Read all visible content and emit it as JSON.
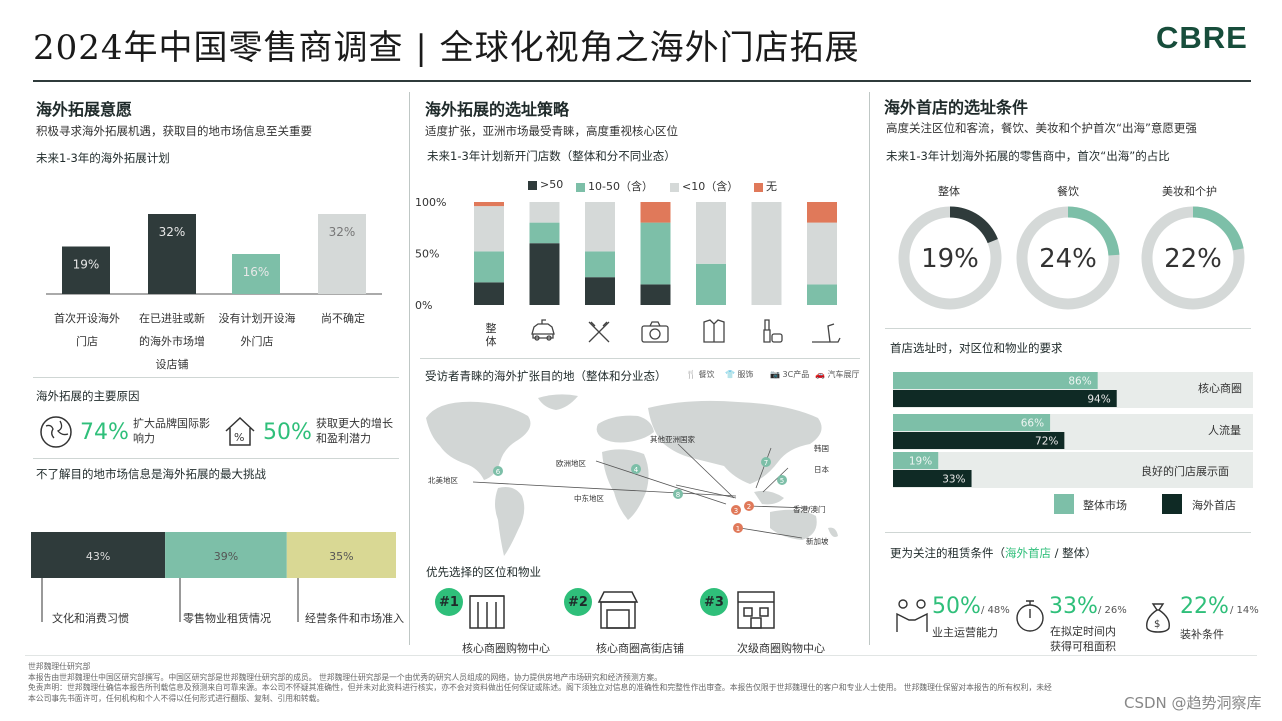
{
  "header": {
    "title": "2024年中国零售商调查 | 全球化视角之海外门店拓展",
    "logo": "CBRE"
  },
  "col1": {
    "heading": "海外拓展意愿",
    "subtitle": "积极寻求海外拓展机遇，获取目的地市场信息至关重要",
    "chart_title": "未来1-3年的海外拓展计划",
    "reasons_title": "海外拓展的主要原因",
    "reason1": {
      "pct": "74%",
      "text": "扩大品牌国际影响力"
    },
    "reason2": {
      "pct": "50%",
      "text": "获取更大的增长和盈利潜力"
    },
    "challenge_title": "不了解目的地市场信息是海外拓展的最大挑战"
  },
  "col2": {
    "heading": "海外拓展的选址策略",
    "subtitle": "适度扩张，亚洲市场最受青睐，高度重视核心区位",
    "chart_title": "未来1-3年计划新开门店数（整体和分不同业态）",
    "map_title": "受访者青睐的海外扩张目的地（整体和分业态）",
    "map_legend": [
      "餐饮",
      "服饰",
      "3C产品",
      "汽车展厅"
    ],
    "regions": [
      {
        "name": "北美地区",
        "rank": "6"
      },
      {
        "name": "欧洲地区",
        "rank": "4"
      },
      {
        "name": "其他亚洲国家",
        "rank": ""
      },
      {
        "name": "中东地区",
        "rank": "8"
      },
      {
        "name": "韩国",
        "rank": "7"
      },
      {
        "name": "日本",
        "rank": "5"
      },
      {
        "name": "香港/澳门",
        "rank": "3"
      },
      {
        "name": "新加坡",
        "rank": "1"
      }
    ],
    "extra_ranks": [
      "2"
    ],
    "priority_title": "优先选择的区位和物业",
    "priority": [
      {
        "rank": "#1",
        "label": "核心商圈购物中心"
      },
      {
        "rank": "#2",
        "label": "核心商圈高街店铺"
      },
      {
        "rank": "#3",
        "label": "次级商圈购物中心"
      }
    ]
  },
  "col3": {
    "heading": "海外首店的选址条件",
    "subtitle": "高度关注区位和客流，餐饮、美妆和个护首次“出海”意愿更强",
    "donut_title": "未来1-3年计划海外拓展的零售商中，首次“出海”的占比",
    "req_title": "首店选址时，对区位和物业的要求",
    "lease_title_pre": "更为关注的租赁条件（",
    "lease_title_highlight": "海外首店",
    "lease_title_post": " / 整体）",
    "lease": [
      {
        "pct": "50%",
        "overall": "/ 48%",
        "label": "业主运营能力"
      },
      {
        "pct": "33%",
        "overall": "/ 26%",
        "label": "在拟定时间内获得可租面积"
      },
      {
        "pct": "22%",
        "overall": "/ 14%",
        "label": "装补条件"
      }
    ]
  },
  "footer": {
    "line1": "世邦魏理仕研究部",
    "line2": "本报告由世邦魏理仕中国区研究部撰写。中国区研究部是世邦魏理仕研究部的成员。 世邦魏理仕研究部是一个由优秀的研究人员组成的网络，协力提供房地产市场研究和经济预测方案。",
    "line3": "免责声明：世邦魏理仕确信本报告所刊载信息及预测来自可靠来源。本公司不怀疑其准确性，但并未对此资料进行核实，亦不会对资料做出任何保证或陈述。阁下须独立对信息的准确性和完整性作出审查。本报告仅限于世邦魏理仕的客户和专业人士使用。 世邦魏理仕保留对本报告的所有权利，未经",
    "line4": "本公司事先书面许可，任何机构和个人不得以任何形式进行翻版、复制、引用和转载。",
    "watermark": "CSDN @趋势洞察库"
  },
  "colors": {
    "dark": "#2f3b3b",
    "teal": "#7dbfa8",
    "gray": "#d5d9d8",
    "orange": "#e0795a",
    "yellow": "#d9d894",
    "green": "#2fbf7a",
    "navy": "#0f2a25"
  },
  "chart_data": [
    {
      "type": "bar",
      "title": "未来1-3年的海外拓展计划",
      "categories": [
        "首次开设海外门店",
        "在已进驻或新的海外市场增设店铺",
        "没有计划开设海外门店",
        "尚不确定"
      ],
      "values": [
        19,
        32,
        16,
        32
      ],
      "labels": [
        "19%",
        "32%",
        "16%",
        "32%"
      ],
      "colors": [
        "#2f3b3b",
        "#2f3b3b",
        "#7dbfa8",
        "#d5d9d8"
      ]
    },
    {
      "type": "bar",
      "stacked": true,
      "orientation": "horizontal",
      "title": "不了解目的地市场信息是海外拓展的最大挑战",
      "categories": [
        "文化和消费习惯",
        "零售物业租赁情况",
        "经营条件和市场准入"
      ],
      "values": [
        43,
        39,
        35
      ],
      "labels": [
        "43%",
        "39%",
        "35%"
      ],
      "colors": [
        "#2f3b3b",
        "#7dbfa8",
        "#d9d894"
      ]
    },
    {
      "type": "bar",
      "stacked": true,
      "title": "未来1-3年计划新开门店数（整体和分不同业态）",
      "categories": [
        "整体",
        "汽车",
        "餐饮",
        "3C产品",
        "服饰",
        "美妆",
        "健身"
      ],
      "first_category_label": "整体",
      "yticks": [
        "100%",
        "50%",
        "0%"
      ],
      "ylim": [
        0,
        100
      ],
      "series": [
        {
          "name": ">50",
          "color": "#2f3b3b",
          "values": [
            22,
            60,
            27,
            20,
            0,
            0,
            0
          ]
        },
        {
          "name": "10-50（含）",
          "color": "#7dbfa8",
          "values": [
            30,
            20,
            25,
            60,
            40,
            0,
            20
          ]
        },
        {
          "name": "<10（含）",
          "color": "#d5d9d8",
          "values": [
            44,
            20,
            48,
            0,
            60,
            100,
            60
          ]
        },
        {
          "name": "无",
          "color": "#e0795a",
          "values": [
            4,
            0,
            0,
            20,
            0,
            0,
            20
          ]
        }
      ]
    },
    {
      "type": "pie",
      "title": "未来1-3年计划海外拓展的零售商中，首次“出海”的占比",
      "categories": [
        "整体",
        "餐饮",
        "美妆和个护"
      ],
      "values": [
        19,
        24,
        22
      ],
      "labels": [
        "19%",
        "24%",
        "22%"
      ],
      "colors": [
        "#2f3b3b",
        "#7dbfa8",
        "#7dbfa8"
      ]
    },
    {
      "type": "bar",
      "orientation": "horizontal",
      "title": "首店选址时，对区位和物业的要求",
      "categories": [
        "核心商圈",
        "人流量",
        "良好的门店展示面"
      ],
      "series": [
        {
          "name": "整体市场",
          "color": "#7dbfa8",
          "values": [
            86,
            66,
            19
          ],
          "labels": [
            "86%",
            "66%",
            "19%"
          ]
        },
        {
          "name": "海外首店",
          "color": "#0f2a25",
          "values": [
            94,
            72,
            33
          ],
          "labels": [
            "94%",
            "72%",
            "33%"
          ]
        }
      ]
    }
  ]
}
